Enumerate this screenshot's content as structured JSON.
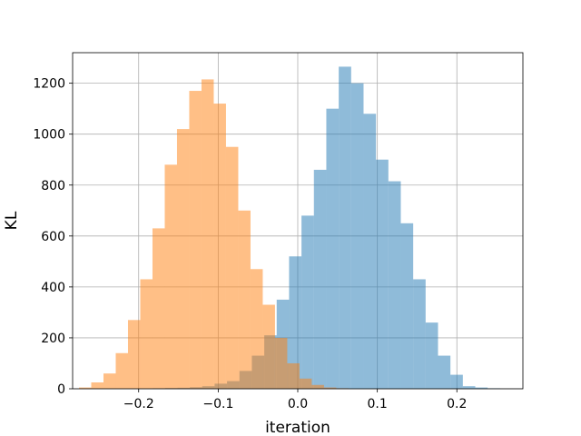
{
  "chart_data": {
    "type": "bar",
    "subtype": "histogram",
    "title": "",
    "xlabel": "iteration",
    "ylabel": "KL",
    "xlim": [
      -0.283,
      0.283
    ],
    "ylim": [
      0,
      1320
    ],
    "xticks": [
      -0.2,
      -0.1,
      0.0,
      0.1,
      0.2
    ],
    "xtick_labels": [
      "−0.2",
      "−0.1",
      "0.0",
      "0.1",
      "0.2"
    ],
    "yticks": [
      0,
      200,
      400,
      600,
      800,
      1000,
      1200
    ],
    "ytick_labels": [
      "0",
      "200",
      "400",
      "600",
      "800",
      "1000",
      "1200"
    ],
    "grid": true,
    "legend": "none",
    "series": [
      {
        "color": "#1f77b4",
        "alpha": 0.5,
        "bin_start": -0.1825,
        "bin_width": 0.0156,
        "counts": [
          2,
          3,
          4,
          6,
          10,
          20,
          30,
          70,
          130,
          210,
          350,
          520,
          680,
          860,
          1100,
          1265,
          1200,
          1080,
          900,
          815,
          650,
          430,
          260,
          130,
          55,
          10,
          5,
          2
        ]
      },
      {
        "color": "#ff7f0e",
        "alpha": 0.5,
        "bin_start": -0.275,
        "bin_width": 0.0154,
        "counts": [
          5,
          25,
          60,
          140,
          270,
          430,
          630,
          880,
          1020,
          1170,
          1215,
          1120,
          950,
          700,
          470,
          330,
          200,
          100,
          40,
          15,
          5,
          2
        ]
      }
    ]
  }
}
